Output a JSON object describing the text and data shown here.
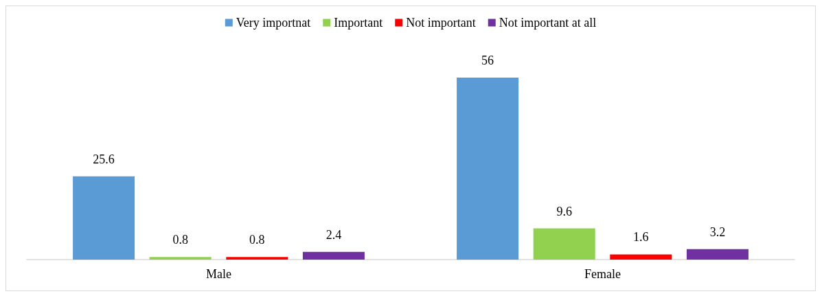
{
  "chart_data": {
    "type": "bar",
    "categories": [
      "Male",
      "Female"
    ],
    "series": [
      {
        "name": "Very importnat",
        "color": "#5b9bd5",
        "values": [
          25.6,
          56
        ]
      },
      {
        "name": "Important",
        "color": "#92d050",
        "values": [
          0.8,
          9.6
        ]
      },
      {
        "name": "Not important",
        "color": "#ff0000",
        "values": [
          0.8,
          1.6
        ]
      },
      {
        "name": "Not important at all",
        "color": "#7030a0",
        "values": [
          2.4,
          3.2
        ]
      }
    ],
    "data_labels": true,
    "legend": "top"
  }
}
